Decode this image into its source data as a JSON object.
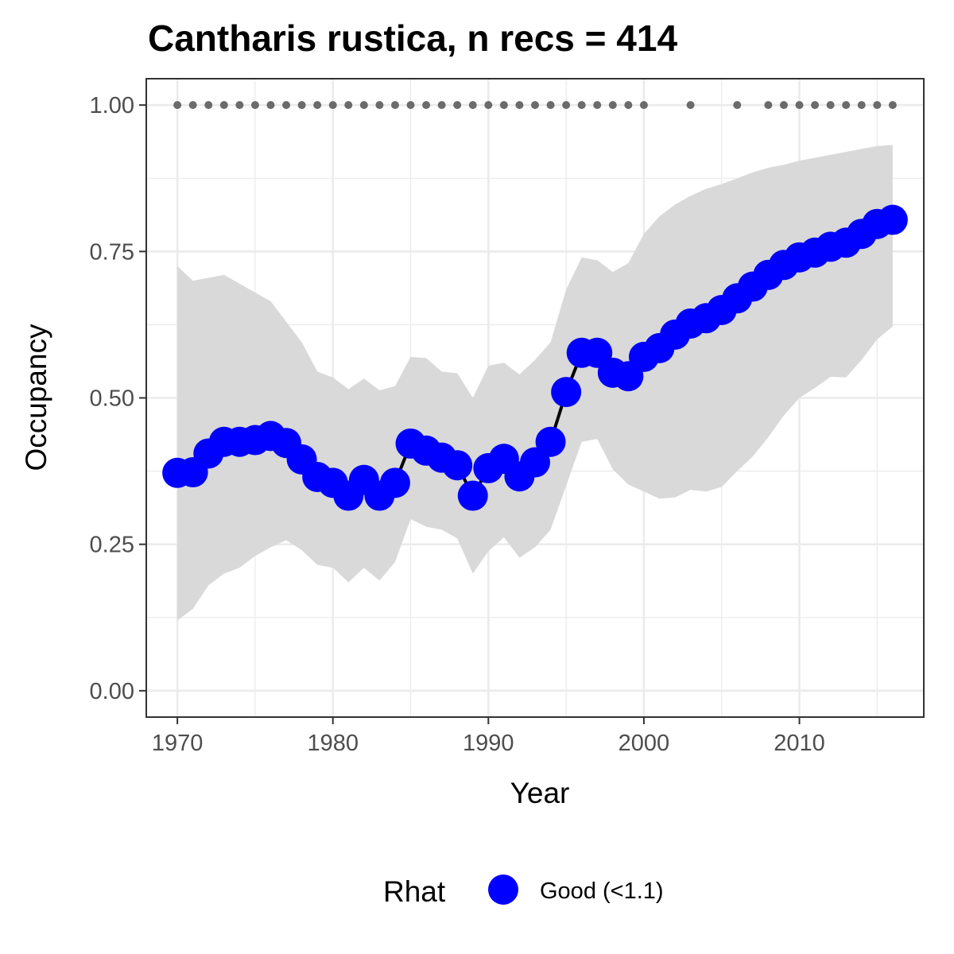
{
  "chart_data": {
    "type": "line",
    "title": "Cantharis rustica, n recs = 414",
    "xlabel": "Year",
    "ylabel": "Occupancy",
    "xlim": [
      1968,
      2018
    ],
    "ylim": [
      -0.045,
      1.045
    ],
    "grid": true,
    "legend_position": "bottom",
    "x_ticks": [
      1970,
      1980,
      1990,
      2000,
      2010
    ],
    "x_tick_labels": [
      "1970",
      "1980",
      "1990",
      "2000",
      "2010"
    ],
    "y_ticks": [
      0,
      0.25,
      0.5,
      0.75,
      1.0
    ],
    "y_tick_labels": [
      "0.00",
      "0.25",
      "0.50",
      "0.75",
      "1.00"
    ],
    "legend": {
      "title": "Rhat",
      "entries": [
        {
          "label": "Good (<1.1)",
          "color": "#0000ff"
        }
      ]
    },
    "colors": {
      "points": "#0000ff",
      "line": "#000000",
      "ribbon": "#d9d9d9",
      "record_dots": "#6b6b6b",
      "grid": "#ebebeb",
      "panel_border": "#333333"
    },
    "series": [
      {
        "x": [
          1970,
          1971,
          1972,
          1973,
          1974,
          1975,
          1976,
          1977,
          1978,
          1979,
          1980,
          1981,
          1982,
          1983,
          1984,
          1985,
          1986,
          1987,
          1988,
          1989,
          1990,
          1991,
          1992,
          1993,
          1994,
          1995,
          1996,
          1997,
          1998,
          1999,
          2000,
          2001,
          2002,
          2003,
          2004,
          2005,
          2006,
          2007,
          2008,
          2009,
          2010,
          2011,
          2012,
          2013,
          2014,
          2015,
          2016
        ],
        "y": [
          0.372,
          0.373,
          0.405,
          0.425,
          0.425,
          0.428,
          0.435,
          0.423,
          0.395,
          0.365,
          0.355,
          0.333,
          0.36,
          0.333,
          0.355,
          0.422,
          0.41,
          0.398,
          0.385,
          0.333,
          0.38,
          0.396,
          0.366,
          0.39,
          0.425,
          0.51,
          0.577,
          0.577,
          0.543,
          0.537,
          0.57,
          0.585,
          0.608,
          0.627,
          0.636,
          0.65,
          0.67,
          0.69,
          0.71,
          0.727,
          0.74,
          0.748,
          0.758,
          0.765,
          0.78,
          0.797,
          0.804
        ],
        "lower": [
          0.12,
          0.14,
          0.18,
          0.2,
          0.21,
          0.23,
          0.245,
          0.257,
          0.24,
          0.215,
          0.21,
          0.185,
          0.21,
          0.188,
          0.22,
          0.293,
          0.28,
          0.275,
          0.26,
          0.2,
          0.238,
          0.262,
          0.227,
          0.245,
          0.275,
          0.35,
          0.425,
          0.43,
          0.378,
          0.352,
          0.34,
          0.328,
          0.33,
          0.343,
          0.34,
          0.348,
          0.375,
          0.4,
          0.433,
          0.47,
          0.5,
          0.517,
          0.536,
          0.535,
          0.565,
          0.6,
          0.622
        ],
        "upper": [
          0.725,
          0.7,
          0.705,
          0.71,
          0.695,
          0.68,
          0.665,
          0.63,
          0.595,
          0.545,
          0.535,
          0.515,
          0.533,
          0.513,
          0.52,
          0.57,
          0.568,
          0.545,
          0.542,
          0.5,
          0.555,
          0.56,
          0.54,
          0.565,
          0.595,
          0.685,
          0.74,
          0.735,
          0.715,
          0.73,
          0.78,
          0.81,
          0.83,
          0.845,
          0.857,
          0.865,
          0.875,
          0.885,
          0.893,
          0.898,
          0.905,
          0.91,
          0.915,
          0.92,
          0.925,
          0.93,
          0.932
        ]
      }
    ],
    "record_years": [
      1970,
      1971,
      1972,
      1973,
      1974,
      1975,
      1976,
      1977,
      1978,
      1979,
      1980,
      1981,
      1982,
      1983,
      1984,
      1985,
      1986,
      1987,
      1988,
      1989,
      1990,
      1991,
      1992,
      1993,
      1994,
      1995,
      1996,
      1997,
      1998,
      1999,
      2000,
      2003,
      2006,
      2008,
      2009,
      2010,
      2011,
      2012,
      2013,
      2014,
      2015,
      2016
    ],
    "record_y": 1.0
  }
}
